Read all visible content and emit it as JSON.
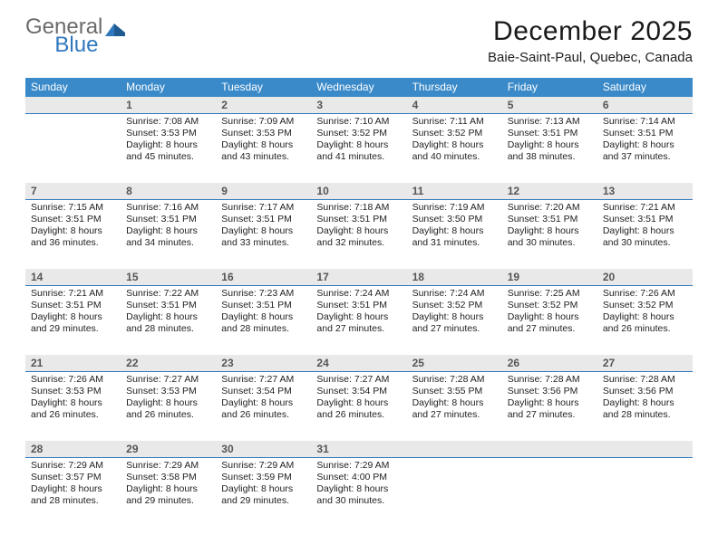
{
  "logo": {
    "text1": "General",
    "text2": "Blue"
  },
  "title": "December 2025",
  "location": "Baie-Saint-Paul, Quebec, Canada",
  "colors": {
    "header_bg": "#3a8ac9",
    "header_fg": "#ffffff",
    "date_row_bg": "#e9e9e9",
    "date_row_border": "#2f78bd",
    "logo_gray": "#6b6b6b",
    "logo_blue": "#2f78bd",
    "text": "#222222",
    "page_bg": "#ffffff"
  },
  "fonts": {
    "title_size_pt": 22,
    "location_size_pt": 11,
    "dayname_size_pt": 9,
    "date_size_pt": 9,
    "cell_size_pt": 8
  },
  "daynames": [
    "Sunday",
    "Monday",
    "Tuesday",
    "Wednesday",
    "Thursday",
    "Friday",
    "Saturday"
  ],
  "weeks": [
    {
      "dates": [
        "",
        "1",
        "2",
        "3",
        "4",
        "5",
        "6"
      ],
      "cells": [
        {
          "lines": []
        },
        {
          "lines": [
            "Sunrise: 7:08 AM",
            "Sunset: 3:53 PM",
            "Daylight: 8 hours",
            "and 45 minutes."
          ]
        },
        {
          "lines": [
            "Sunrise: 7:09 AM",
            "Sunset: 3:53 PM",
            "Daylight: 8 hours",
            "and 43 minutes."
          ]
        },
        {
          "lines": [
            "Sunrise: 7:10 AM",
            "Sunset: 3:52 PM",
            "Daylight: 8 hours",
            "and 41 minutes."
          ]
        },
        {
          "lines": [
            "Sunrise: 7:11 AM",
            "Sunset: 3:52 PM",
            "Daylight: 8 hours",
            "and 40 minutes."
          ]
        },
        {
          "lines": [
            "Sunrise: 7:13 AM",
            "Sunset: 3:51 PM",
            "Daylight: 8 hours",
            "and 38 minutes."
          ]
        },
        {
          "lines": [
            "Sunrise: 7:14 AM",
            "Sunset: 3:51 PM",
            "Daylight: 8 hours",
            "and 37 minutes."
          ]
        }
      ]
    },
    {
      "dates": [
        "7",
        "8",
        "9",
        "10",
        "11",
        "12",
        "13"
      ],
      "cells": [
        {
          "lines": [
            "Sunrise: 7:15 AM",
            "Sunset: 3:51 PM",
            "Daylight: 8 hours",
            "and 36 minutes."
          ]
        },
        {
          "lines": [
            "Sunrise: 7:16 AM",
            "Sunset: 3:51 PM",
            "Daylight: 8 hours",
            "and 34 minutes."
          ]
        },
        {
          "lines": [
            "Sunrise: 7:17 AM",
            "Sunset: 3:51 PM",
            "Daylight: 8 hours",
            "and 33 minutes."
          ]
        },
        {
          "lines": [
            "Sunrise: 7:18 AM",
            "Sunset: 3:51 PM",
            "Daylight: 8 hours",
            "and 32 minutes."
          ]
        },
        {
          "lines": [
            "Sunrise: 7:19 AM",
            "Sunset: 3:50 PM",
            "Daylight: 8 hours",
            "and 31 minutes."
          ]
        },
        {
          "lines": [
            "Sunrise: 7:20 AM",
            "Sunset: 3:51 PM",
            "Daylight: 8 hours",
            "and 30 minutes."
          ]
        },
        {
          "lines": [
            "Sunrise: 7:21 AM",
            "Sunset: 3:51 PM",
            "Daylight: 8 hours",
            "and 30 minutes."
          ]
        }
      ]
    },
    {
      "dates": [
        "14",
        "15",
        "16",
        "17",
        "18",
        "19",
        "20"
      ],
      "cells": [
        {
          "lines": [
            "Sunrise: 7:21 AM",
            "Sunset: 3:51 PM",
            "Daylight: 8 hours",
            "and 29 minutes."
          ]
        },
        {
          "lines": [
            "Sunrise: 7:22 AM",
            "Sunset: 3:51 PM",
            "Daylight: 8 hours",
            "and 28 minutes."
          ]
        },
        {
          "lines": [
            "Sunrise: 7:23 AM",
            "Sunset: 3:51 PM",
            "Daylight: 8 hours",
            "and 28 minutes."
          ]
        },
        {
          "lines": [
            "Sunrise: 7:24 AM",
            "Sunset: 3:51 PM",
            "Daylight: 8 hours",
            "and 27 minutes."
          ]
        },
        {
          "lines": [
            "Sunrise: 7:24 AM",
            "Sunset: 3:52 PM",
            "Daylight: 8 hours",
            "and 27 minutes."
          ]
        },
        {
          "lines": [
            "Sunrise: 7:25 AM",
            "Sunset: 3:52 PM",
            "Daylight: 8 hours",
            "and 27 minutes."
          ]
        },
        {
          "lines": [
            "Sunrise: 7:26 AM",
            "Sunset: 3:52 PM",
            "Daylight: 8 hours",
            "and 26 minutes."
          ]
        }
      ]
    },
    {
      "dates": [
        "21",
        "22",
        "23",
        "24",
        "25",
        "26",
        "27"
      ],
      "cells": [
        {
          "lines": [
            "Sunrise: 7:26 AM",
            "Sunset: 3:53 PM",
            "Daylight: 8 hours",
            "and 26 minutes."
          ]
        },
        {
          "lines": [
            "Sunrise: 7:27 AM",
            "Sunset: 3:53 PM",
            "Daylight: 8 hours",
            "and 26 minutes."
          ]
        },
        {
          "lines": [
            "Sunrise: 7:27 AM",
            "Sunset: 3:54 PM",
            "Daylight: 8 hours",
            "and 26 minutes."
          ]
        },
        {
          "lines": [
            "Sunrise: 7:27 AM",
            "Sunset: 3:54 PM",
            "Daylight: 8 hours",
            "and 26 minutes."
          ]
        },
        {
          "lines": [
            "Sunrise: 7:28 AM",
            "Sunset: 3:55 PM",
            "Daylight: 8 hours",
            "and 27 minutes."
          ]
        },
        {
          "lines": [
            "Sunrise: 7:28 AM",
            "Sunset: 3:56 PM",
            "Daylight: 8 hours",
            "and 27 minutes."
          ]
        },
        {
          "lines": [
            "Sunrise: 7:28 AM",
            "Sunset: 3:56 PM",
            "Daylight: 8 hours",
            "and 28 minutes."
          ]
        }
      ]
    },
    {
      "dates": [
        "28",
        "29",
        "30",
        "31",
        "",
        "",
        ""
      ],
      "cells": [
        {
          "lines": [
            "Sunrise: 7:29 AM",
            "Sunset: 3:57 PM",
            "Daylight: 8 hours",
            "and 28 minutes."
          ]
        },
        {
          "lines": [
            "Sunrise: 7:29 AM",
            "Sunset: 3:58 PM",
            "Daylight: 8 hours",
            "and 29 minutes."
          ]
        },
        {
          "lines": [
            "Sunrise: 7:29 AM",
            "Sunset: 3:59 PM",
            "Daylight: 8 hours",
            "and 29 minutes."
          ]
        },
        {
          "lines": [
            "Sunrise: 7:29 AM",
            "Sunset: 4:00 PM",
            "Daylight: 8 hours",
            "and 30 minutes."
          ]
        },
        {
          "lines": []
        },
        {
          "lines": []
        },
        {
          "lines": []
        }
      ]
    }
  ]
}
